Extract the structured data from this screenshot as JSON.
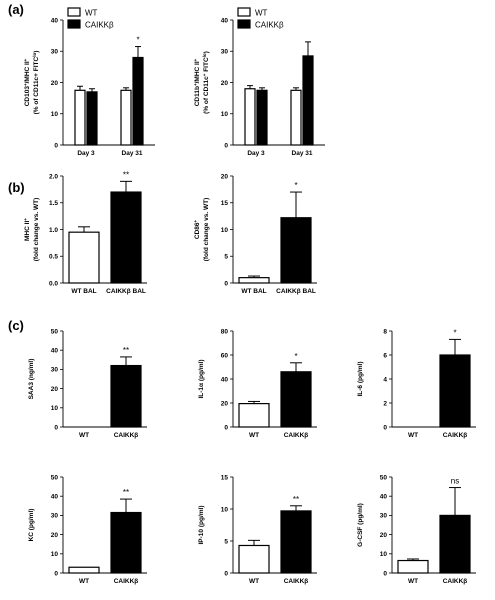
{
  "panels": [
    {
      "letter": "(a)"
    },
    {
      "letter": "(b)"
    },
    {
      "letter": "(c)"
    }
  ],
  "chart_data": [
    {
      "id": "a1",
      "panel": "(a)",
      "type": "bar",
      "ylabel": [
        "CD103",
        "+",
        "/MHC II",
        "+",
        "(% of CD11c+ FITC",
        "lo",
        ")"
      ],
      "categories": [
        "Day 3",
        "Day 31"
      ],
      "series": [
        {
          "name": "WT",
          "color": "#ffffff",
          "values": [
            17.5,
            17.5
          ],
          "errors": [
            1.3,
            0.8
          ]
        },
        {
          "name": "CAIKKβ",
          "color": "#000000",
          "values": [
            17,
            28
          ],
          "errors": [
            1,
            3.5
          ]
        }
      ],
      "ylim": [
        0,
        40
      ],
      "yticks": [
        0,
        10,
        20,
        30,
        40
      ],
      "annotations": [
        {
          "category": "Day 31",
          "series": "CAIKKβ",
          "text": "*"
        }
      ]
    },
    {
      "id": "a2",
      "panel": "(a)",
      "type": "bar",
      "ylabel": [
        "CD11b",
        "+",
        "/MHC II",
        "+",
        "(% of CD11c",
        "+",
        " FITC",
        "lo",
        ")"
      ],
      "categories": [
        "Day 3",
        "Day 31"
      ],
      "series": [
        {
          "name": "WT",
          "color": "#ffffff",
          "values": [
            18,
            17.5
          ],
          "errors": [
            1,
            0.8
          ]
        },
        {
          "name": "CAIKKβ",
          "color": "#000000",
          "values": [
            17.5,
            28.5
          ],
          "errors": [
            0.8,
            4.5
          ]
        }
      ],
      "ylim": [
        0,
        40
      ],
      "yticks": [
        0,
        10,
        20,
        30,
        40
      ],
      "annotations": []
    },
    {
      "id": "b1",
      "panel": "(b)",
      "type": "bar",
      "ylabel": [
        "MHC II",
        "+",
        "(fold change vs. WT)"
      ],
      "categories": [
        "WT BAL",
        "CAIKKβ BAL"
      ],
      "bar_colors": [
        "#ffffff",
        "#000000"
      ],
      "values": [
        0.95,
        1.7
      ],
      "errors": [
        0.1,
        0.2
      ],
      "ylim": [
        0,
        2.0
      ],
      "yticks": [
        0,
        0.5,
        1.0,
        1.5,
        2.0
      ],
      "tick_labels": [
        "0.0",
        "0.5",
        "1.0",
        "1.5",
        "2.0"
      ],
      "annotations": [
        {
          "index": 1,
          "text": "**"
        }
      ]
    },
    {
      "id": "b2",
      "panel": "(b)",
      "type": "bar",
      "ylabel": [
        "CD86",
        "+",
        "(fold change vs. WT)"
      ],
      "categories": [
        "WT BAL",
        "CAIKKβ BAL"
      ],
      "bar_colors": [
        "#ffffff",
        "#000000"
      ],
      "values": [
        1,
        12.2
      ],
      "errors": [
        0.3,
        4.8
      ],
      "ylim": [
        0,
        20
      ],
      "yticks": [
        0,
        5,
        10,
        15,
        20
      ],
      "annotations": [
        {
          "index": 1,
          "text": "*"
        }
      ]
    },
    {
      "id": "c1",
      "panel": "(c)",
      "type": "bar",
      "ylabel": [
        "SAA3 (ng/ml)"
      ],
      "categories": [
        "WT",
        "CAIKKβ"
      ],
      "bar_colors": [
        "#ffffff",
        "#000000"
      ],
      "values": [
        0,
        32
      ],
      "errors": [
        0,
        4.5
      ],
      "ylim": [
        0,
        50
      ],
      "yticks": [
        0,
        10,
        20,
        30,
        40,
        50
      ],
      "annotations": [
        {
          "index": 1,
          "text": "**"
        }
      ]
    },
    {
      "id": "c2",
      "panel": "(c)",
      "type": "bar",
      "ylabel": [
        "IL-1α (pg/ml)"
      ],
      "categories": [
        "WT",
        "CAIKKβ"
      ],
      "bar_colors": [
        "#ffffff",
        "#000000"
      ],
      "values": [
        19.5,
        46
      ],
      "errors": [
        1.8,
        7.5
      ],
      "ylim": [
        0,
        80
      ],
      "yticks": [
        0,
        20,
        40,
        60,
        80
      ],
      "annotations": [
        {
          "index": 1,
          "text": "*"
        }
      ]
    },
    {
      "id": "c3",
      "panel": "(c)",
      "type": "bar",
      "ylabel": [
        "IL-6 (pg/ml)"
      ],
      "categories": [
        "WT",
        "CAIKKβ"
      ],
      "bar_colors": [
        "#ffffff",
        "#000000"
      ],
      "values": [
        0,
        6
      ],
      "errors": [
        0,
        1.3
      ],
      "ylim": [
        0,
        8
      ],
      "yticks": [
        0,
        2,
        4,
        6,
        8
      ],
      "annotations": [
        {
          "index": 1,
          "text": "*"
        }
      ]
    },
    {
      "id": "c4",
      "panel": "(c)",
      "type": "bar",
      "ylabel": [
        "KC (pg/ml)"
      ],
      "categories": [
        "WT",
        "CAIKKβ"
      ],
      "bar_colors": [
        "#ffffff",
        "#000000"
      ],
      "values": [
        3,
        31.5
      ],
      "errors": [
        0,
        7
      ],
      "ylim": [
        0,
        50
      ],
      "yticks": [
        0,
        10,
        20,
        30,
        40,
        50
      ],
      "annotations": [
        {
          "index": 1,
          "text": "**"
        }
      ]
    },
    {
      "id": "c5",
      "panel": "(c)",
      "type": "bar",
      "ylabel": [
        "IP-10 (pg/ml)"
      ],
      "categories": [
        "WT",
        "CAIKKβ"
      ],
      "bar_colors": [
        "#ffffff",
        "#000000"
      ],
      "values": [
        4.3,
        9.7
      ],
      "errors": [
        0.8,
        0.8
      ],
      "ylim": [
        0,
        15
      ],
      "yticks": [
        0,
        5,
        10,
        15
      ],
      "annotations": [
        {
          "index": 1,
          "text": "**"
        }
      ]
    },
    {
      "id": "c6",
      "panel": "(c)",
      "type": "bar",
      "ylabel": [
        "G-CSF (pg/ml)"
      ],
      "categories": [
        "WT",
        "CAIKKβ"
      ],
      "bar_colors": [
        "#ffffff",
        "#000000"
      ],
      "values": [
        6.5,
        30
      ],
      "errors": [
        0.8,
        14.5
      ],
      "ylim": [
        0,
        50
      ],
      "yticks": [
        0,
        10,
        20,
        30,
        40,
        50
      ],
      "annotations": [
        {
          "index": 1,
          "text": "ns"
        }
      ]
    }
  ]
}
